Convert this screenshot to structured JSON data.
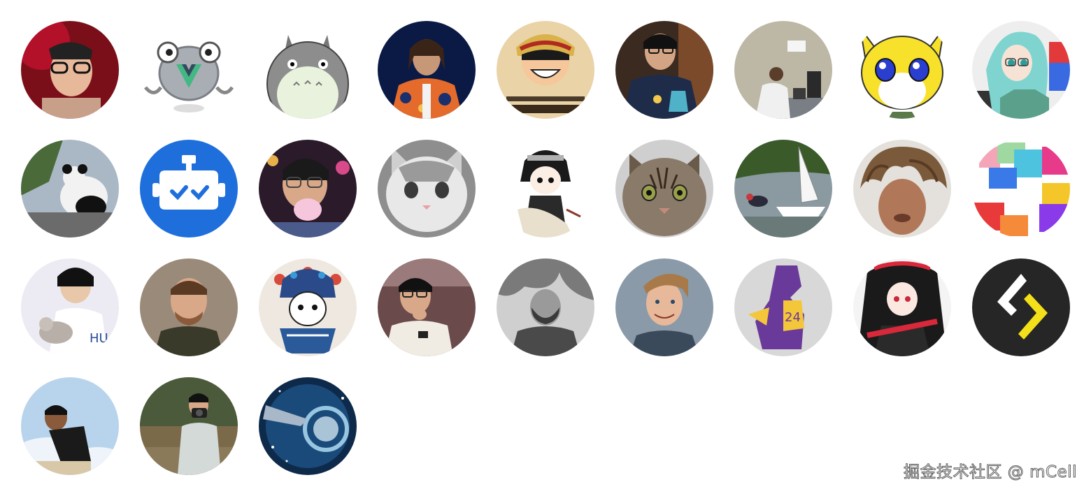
{
  "avatars": [
    {
      "label": "contributor-avatar-1"
    },
    {
      "label": "contributor-avatar-2"
    },
    {
      "label": "contributor-avatar-3"
    },
    {
      "label": "contributor-avatar-4"
    },
    {
      "label": "contributor-avatar-5"
    },
    {
      "label": "contributor-avatar-6"
    },
    {
      "label": "contributor-avatar-7"
    },
    {
      "label": "contributor-avatar-8"
    },
    {
      "label": "contributor-avatar-9"
    },
    {
      "label": "contributor-avatar-10"
    },
    {
      "label": "contributor-avatar-11"
    },
    {
      "label": "contributor-avatar-12"
    },
    {
      "label": "contributor-avatar-13"
    },
    {
      "label": "contributor-avatar-14"
    },
    {
      "label": "contributor-avatar-15"
    },
    {
      "label": "contributor-avatar-16"
    },
    {
      "label": "contributor-avatar-17"
    },
    {
      "label": "contributor-avatar-18"
    },
    {
      "label": "contributor-avatar-19"
    },
    {
      "label": "contributor-avatar-20"
    },
    {
      "label": "contributor-avatar-21"
    },
    {
      "label": "contributor-avatar-22"
    },
    {
      "label": "contributor-avatar-23"
    },
    {
      "label": "contributor-avatar-24"
    },
    {
      "label": "contributor-avatar-25"
    },
    {
      "label": "contributor-avatar-26"
    },
    {
      "label": "contributor-avatar-27"
    },
    {
      "label": "contributor-avatar-28"
    },
    {
      "label": "contributor-avatar-29"
    },
    {
      "label": "contributor-avatar-30"
    }
  ],
  "watermark": "掘金技术社区 @ mCell"
}
